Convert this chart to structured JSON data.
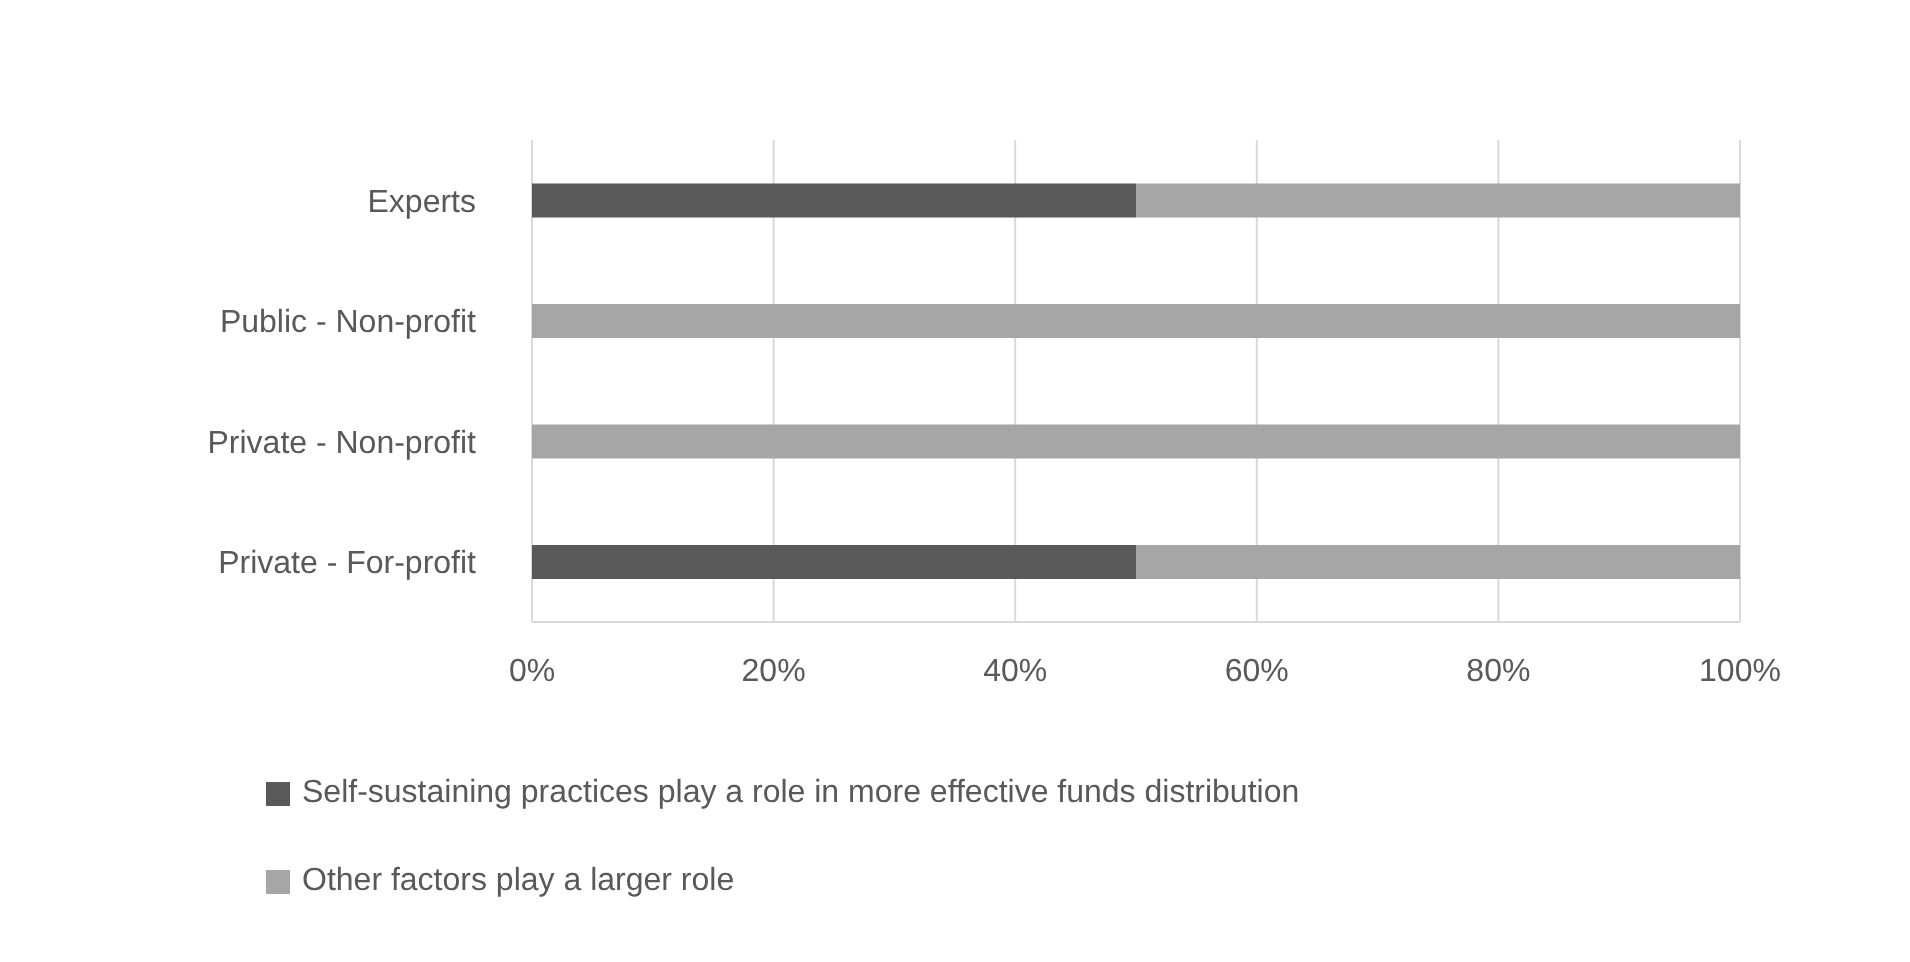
{
  "chart_data": {
    "type": "bar",
    "orientation": "horizontal",
    "stacked": true,
    "categories": [
      "Experts",
      "Public - Non-profit",
      "Private - Non-profit",
      "Private - For-profit"
    ],
    "series": [
      {
        "name": "Self-sustaining practices play a role in more effective funds distribution",
        "color": "#595959",
        "values": [
          50,
          0,
          0,
          50
        ]
      },
      {
        "name": "Other factors play a larger role",
        "color": "#a6a6a6",
        "values": [
          50,
          100,
          100,
          50
        ]
      }
    ],
    "xlim": [
      0,
      100
    ],
    "xticks": [
      {
        "value": 0,
        "label": "0%"
      },
      {
        "value": 20,
        "label": "20%"
      },
      {
        "value": 40,
        "label": "40%"
      },
      {
        "value": 60,
        "label": "60%"
      },
      {
        "value": 80,
        "label": "80%"
      },
      {
        "value": 100,
        "label": "100%"
      }
    ],
    "grid": "x",
    "legend": "bottom"
  }
}
